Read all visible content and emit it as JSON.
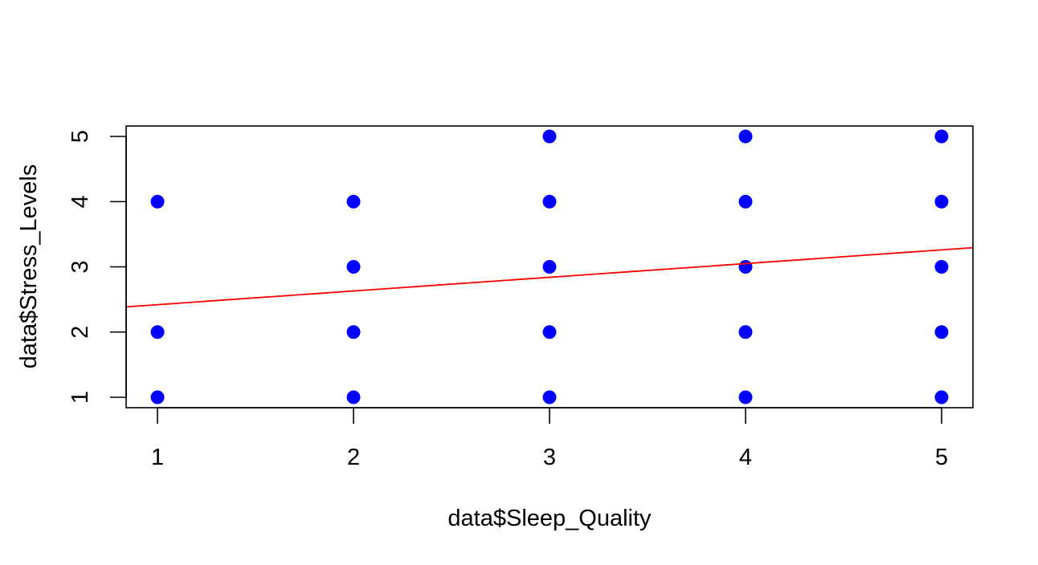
{
  "chart_data": {
    "type": "scatter",
    "title": "",
    "xlabel": "data$Sleep_Quality",
    "ylabel": "data$Stress_Levels",
    "xlim": [
      0.84,
      5.16
    ],
    "ylim": [
      0.84,
      5.16
    ],
    "x_ticks": [
      1,
      2,
      3,
      4,
      5
    ],
    "y_ticks": [
      1,
      2,
      3,
      4,
      5
    ],
    "series": [
      {
        "x": [
          1,
          1,
          1,
          2,
          2,
          2,
          2,
          3,
          3,
          3,
          3,
          3,
          4,
          4,
          4,
          4,
          4,
          5,
          5,
          5,
          5,
          5
        ],
        "y": [
          1,
          2,
          4,
          1,
          2,
          3,
          4,
          1,
          2,
          3,
          4,
          5,
          1,
          2,
          3,
          4,
          5,
          1,
          2,
          3,
          4,
          5
        ],
        "color": "#0000ff"
      }
    ],
    "regression_line": {
      "intercept": 2.21,
      "slope": 0.21,
      "color": "#ff0000"
    },
    "grid": false,
    "legend": "none"
  }
}
